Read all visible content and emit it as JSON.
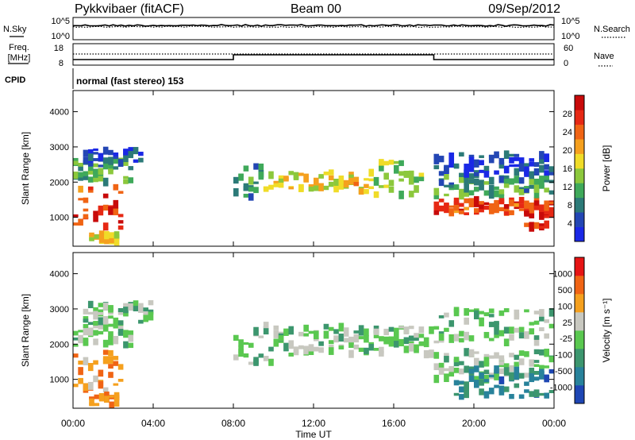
{
  "header": {
    "station": "Pykkvibaer (fitACF)",
    "beam": "Beam 00",
    "date": "09/Sep/2012"
  },
  "strip_panels": {
    "nsky": {
      "label": "N.Sky",
      "ticks": [
        "10^5",
        "10^0"
      ]
    },
    "nsearch": {
      "label": "N.Search",
      "ticks": [
        "10^5",
        "10^0"
      ]
    },
    "freq": {
      "label_line1": "Freq.",
      "label_line2": "[MHz]",
      "ticks": [
        "18",
        "8"
      ]
    },
    "nave": {
      "label": "Nave",
      "ticks": [
        "60",
        "0"
      ]
    },
    "cpid": {
      "label": "CPID",
      "text": "normal (fast stereo) 153"
    }
  },
  "x_axis": {
    "label": "Time UT",
    "ticks": [
      "00:00",
      "04:00",
      "08:00",
      "12:00",
      "16:00",
      "20:00",
      "00:00"
    ]
  },
  "chart_data": [
    {
      "type": "heatmap",
      "name": "power",
      "ylabel": "Slant Range [km]",
      "yticks": [
        1000,
        2000,
        3000,
        4000
      ],
      "ylim": [
        180,
        4600
      ],
      "xlim_hours": [
        0,
        24
      ],
      "colorbar": {
        "label": "Power [dB]",
        "ticks": [
          "28",
          "24",
          "20",
          "16",
          "12",
          "8",
          "4"
        ],
        "colors": [
          "#1a28e6",
          "#2346b4",
          "#2c7a78",
          "#3fa95a",
          "#8cc83c",
          "#f0dc28",
          "#f5a01e",
          "#f06414",
          "#e62814",
          "#c80a0a"
        ]
      },
      "bands": [
        {
          "start": 0.0,
          "end": 3.0,
          "center": 2300,
          "width": 300,
          "level": 0.35
        },
        {
          "start": 0.0,
          "end": 2.5,
          "center": 1300,
          "width": 600,
          "level": 0.85
        },
        {
          "start": 0.5,
          "end": 3.5,
          "center": 2700,
          "width": 250,
          "level": 0.1
        },
        {
          "start": 0.8,
          "end": 2.2,
          "center": 400,
          "width": 120,
          "level": 0.55
        },
        {
          "start": 8.0,
          "end": 9.5,
          "center": 2000,
          "width": 500,
          "level": 0.25
        },
        {
          "start": 9.5,
          "end": 14.0,
          "center": 2050,
          "width": 250,
          "level": 0.55
        },
        {
          "start": 14.0,
          "end": 15.0,
          "center": 2000,
          "width": 350,
          "level": 0.6
        },
        {
          "start": 15.0,
          "end": 17.5,
          "center": 2100,
          "width": 500,
          "level": 0.45
        },
        {
          "start": 18.0,
          "end": 24.0,
          "center": 1300,
          "width": 200,
          "level": 0.85
        },
        {
          "start": 18.0,
          "end": 24.0,
          "center": 1900,
          "width": 300,
          "level": 0.3
        },
        {
          "start": 18.0,
          "end": 24.0,
          "center": 2500,
          "width": 300,
          "level": 0.1
        },
        {
          "start": 22.5,
          "end": 24.0,
          "center": 1000,
          "width": 300,
          "level": 0.9
        }
      ]
    },
    {
      "type": "heatmap",
      "name": "velocity",
      "ylabel": "Slant Range [km]",
      "yticks": [
        1000,
        2000,
        3000,
        4000
      ],
      "ylim": [
        180,
        4600
      ],
      "xlim_hours": [
        0,
        24
      ],
      "colorbar": {
        "label": "Velocity [m s⁻¹]",
        "ticks": [
          "1000",
          "500",
          "100",
          "25",
          "-25",
          "-100",
          "-500",
          "-1000"
        ],
        "colors": [
          "#1e46b4",
          "#28829b",
          "#3c966e",
          "#5ac850",
          "#c8c8c0",
          "#f5a01e",
          "#f06414",
          "#e61414"
        ]
      },
      "bands": [
        {
          "start": 0.0,
          "end": 3.0,
          "center": 2300,
          "width": 400,
          "level": 0.45
        },
        {
          "start": 0.0,
          "end": 2.5,
          "center": 1300,
          "width": 600,
          "level": 0.75
        },
        {
          "start": 0.5,
          "end": 4.0,
          "center": 2900,
          "width": 300,
          "level": 0.45
        },
        {
          "start": 0.8,
          "end": 2.2,
          "center": 400,
          "width": 150,
          "level": 0.8
        },
        {
          "start": 8.0,
          "end": 10.0,
          "center": 2000,
          "width": 600,
          "level": 0.45
        },
        {
          "start": 10.0,
          "end": 18.0,
          "center": 2100,
          "width": 400,
          "level": 0.45
        },
        {
          "start": 18.0,
          "end": 24.0,
          "center": 1400,
          "width": 400,
          "level": 0.45
        },
        {
          "start": 19.0,
          "end": 24.0,
          "center": 900,
          "width": 400,
          "level": 0.2
        },
        {
          "start": 18.0,
          "end": 24.0,
          "center": 2500,
          "width": 500,
          "level": 0.45
        }
      ]
    }
  ]
}
